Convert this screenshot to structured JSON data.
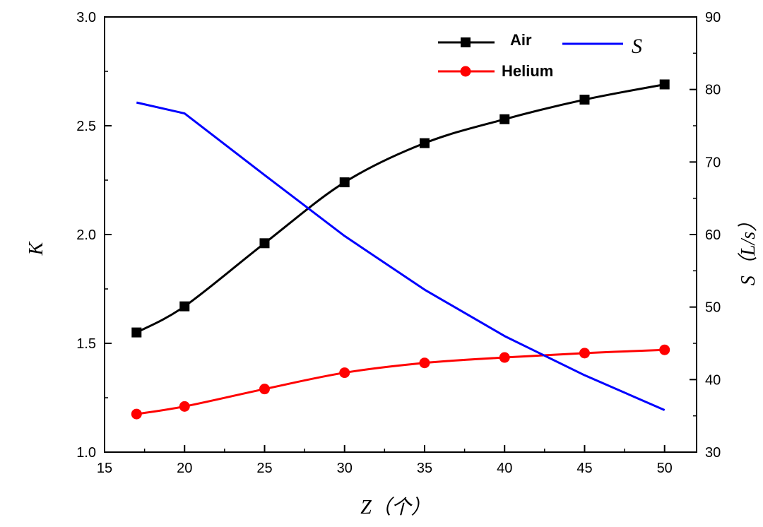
{
  "chart_data": {
    "type": "line",
    "x_axis": {
      "label": "Z（个）",
      "min": 15,
      "max": 52,
      "ticks": [
        15,
        20,
        25,
        30,
        35,
        40,
        45,
        50
      ]
    },
    "y_left": {
      "label": "K",
      "min": 1.0,
      "max": 3.0,
      "ticks": [
        "1.0",
        "1.5",
        "2.0",
        "2.5",
        "3.0"
      ]
    },
    "y_right": {
      "label": "S（L/s）",
      "min": 30,
      "max": 90,
      "ticks": [
        30,
        40,
        50,
        60,
        70,
        80,
        90
      ]
    },
    "grid": false,
    "legend_position": "top-right",
    "series": [
      {
        "name": "Air",
        "axis": "left",
        "color": "#000000",
        "marker": "square",
        "x": [
          17,
          20,
          25,
          30,
          35,
          40,
          45,
          50
        ],
        "y": [
          1.55,
          1.67,
          1.96,
          2.24,
          2.42,
          2.53,
          2.62,
          2.69
        ]
      },
      {
        "name": "Helium",
        "axis": "left",
        "color": "#ff0000",
        "marker": "circle",
        "x": [
          17,
          20,
          25,
          30,
          35,
          40,
          45,
          50
        ],
        "y": [
          1.175,
          1.21,
          1.29,
          1.365,
          1.41,
          1.435,
          1.455,
          1.47
        ]
      },
      {
        "name": "S",
        "axis": "right",
        "color": "#0000ff",
        "marker": "none",
        "x": [
          17,
          20,
          25,
          30,
          35,
          40,
          45,
          50
        ],
        "y": [
          78.2,
          76.7,
          68.2,
          59.8,
          52.4,
          46.0,
          40.6,
          35.8
        ]
      }
    ]
  }
}
